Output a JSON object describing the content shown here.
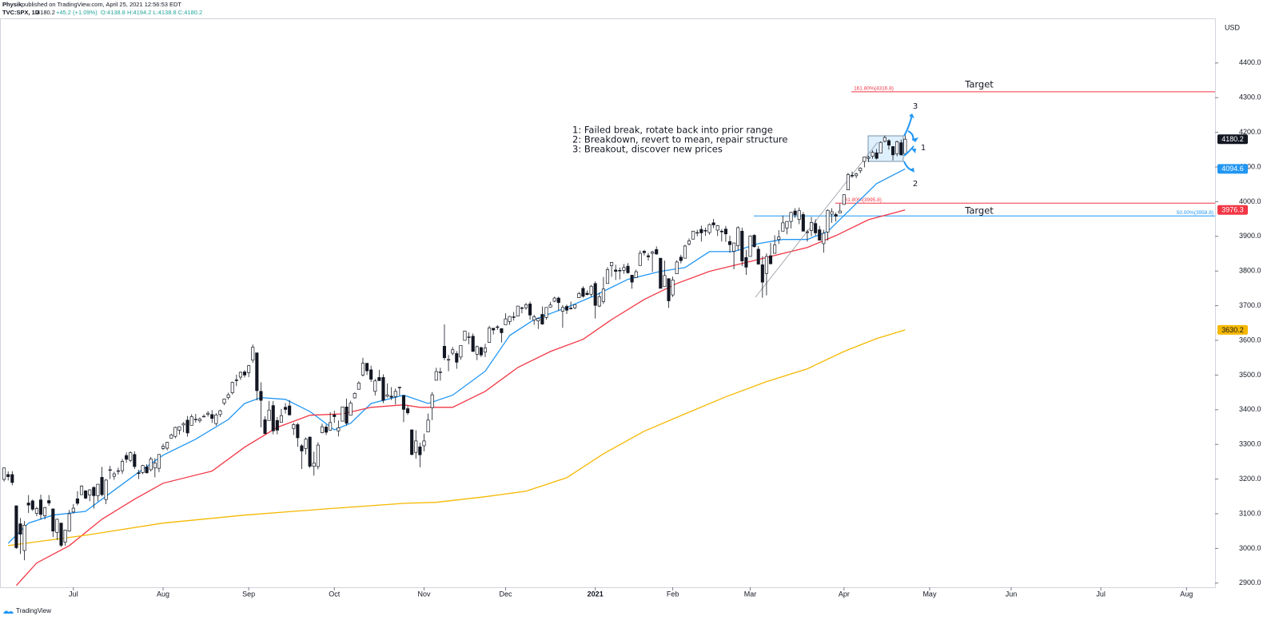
{
  "header": {
    "author": "Physik",
    "published": "published on TradingView.com, April 25, 2021 12:56:53 EDT",
    "symbol": "TVC:SPX, 1D",
    "last": "4180.2",
    "change": "+45.2 (+1.09%)",
    "ohlc": "O:4138.8 H:4194.2 L:4138.8 C:4180.2"
  },
  "footer": {
    "brand": "TradingView"
  },
  "chart_data": {
    "type": "candlestick",
    "currency": "USD",
    "colors": {
      "up": "#ffffff",
      "down": "#131722",
      "outline": "#131722"
    },
    "ylim": [
      2888,
      4524
    ],
    "yticks": [
      {
        "value": 2900,
        "label": "2900.0"
      },
      {
        "value": 3000,
        "label": "3000.0"
      },
      {
        "value": 3100,
        "label": "3100.0"
      },
      {
        "value": 3200,
        "label": "3200.0"
      },
      {
        "value": 3300,
        "label": "3300.0"
      },
      {
        "value": 3400,
        "label": "3400.0"
      },
      {
        "value": 3500,
        "label": "3500.0"
      },
      {
        "value": 3600,
        "label": "3600.0"
      },
      {
        "value": 3700,
        "label": "3700.0"
      },
      {
        "value": 3800,
        "label": "3800.0"
      },
      {
        "value": 3900,
        "label": "3900.0"
      },
      {
        "value": 4000,
        "label": "4000.0"
      },
      {
        "value": 4100,
        "label": "4100.0"
      },
      {
        "value": 4200,
        "label": "4200.0"
      },
      {
        "value": 4300,
        "label": "4300.0"
      },
      {
        "value": 4400,
        "label": "4400.0"
      }
    ],
    "xlim": [
      -1,
      297
    ],
    "xticks": [
      {
        "value": 17,
        "label": "Jul"
      },
      {
        "value": 39,
        "label": "Aug"
      },
      {
        "value": 60,
        "label": "Sep"
      },
      {
        "value": 81,
        "label": "Oct"
      },
      {
        "value": 103,
        "label": "Nov"
      },
      {
        "value": 123,
        "label": "Dec"
      },
      {
        "value": 145,
        "label": "2021"
      },
      {
        "value": 164,
        "label": "Feb"
      },
      {
        "value": 183,
        "label": "Mar"
      },
      {
        "value": 206,
        "label": "Apr"
      },
      {
        "value": 227,
        "label": "May"
      },
      {
        "value": 247,
        "label": "Jun"
      },
      {
        "value": 269,
        "label": "Jul"
      },
      {
        "value": 290,
        "label": "Aug"
      }
    ],
    "open": [
      3199,
      3213,
      3213,
      3123,
      3071,
      2994,
      3131,
      3137,
      3101,
      3140,
      3094,
      3138,
      3114,
      3046,
      3073,
      3018,
      3050,
      3105,
      3143,
      3155,
      3166,
      3154,
      3176,
      3152,
      3205,
      3141,
      3225,
      3208,
      3224,
      3224,
      3268,
      3254,
      3271,
      3218,
      3219,
      3235,
      3227,
      3232,
      3231,
      3288,
      3289,
      3318,
      3323,
      3341,
      3356,
      3370,
      3355,
      3372,
      3368,
      3380,
      3387,
      3386,
      3360,
      3386,
      3419,
      3435,
      3449,
      3486,
      3494,
      3509,
      3507,
      3543,
      3564,
      3453,
      3371,
      3369,
      3412,
      3369,
      3364,
      3407,
      3411,
      3346,
      3357,
      3296,
      3288,
      3321,
      3237,
      3236,
      3334,
      3350,
      3341,
      3385,
      3339,
      3367,
      3408,
      3384,
      3434,
      3459,
      3500,
      3534,
      3515,
      3453,
      3493,
      3493,
      3439,
      3439,
      3438,
      3464,
      3441,
      3403,
      3342,
      3277,
      3293,
      3296,
      3336,
      3406,
      3485,
      3508,
      3583,
      3543,
      3563,
      3562,
      3552,
      3600,
      3610,
      3612,
      3560,
      3579,
      3566,
      3594,
      3635,
      3639,
      3634,
      3645,
      3654,
      3668,
      3670,
      3694,
      3694,
      3705,
      3659,
      3656,
      3675,
      3666,
      3696,
      3713,
      3722,
      3684,
      3698,
      3693,
      3694,
      3723,
      3750,
      3736,
      3733,
      3764,
      3699,
      3712,
      3764,
      3815,
      3803,
      3802,
      3802,
      3814,
      3788,
      3781,
      3816,
      3857,
      3844,
      3851,
      3862,
      3837,
      3755,
      3778,
      3731,
      3792,
      3840,
      3837,
      3878,
      3892,
      3910,
      3920,
      3917,
      3911,
      3939,
      3918,
      3915,
      3921,
      3885,
      3857,
      3873,
      3915,
      3839,
      3842,
      3903,
      3863,
      3818,
      3793,
      3844,
      3851,
      3891,
      3915,
      3924,
      3943,
      3973,
      3949,
      3963,
      3913,
      3917,
      3937,
      3919,
      3879,
      3912,
      3964,
      3963,
      3967,
      3992,
      4034,
      4076,
      4075,
      4089,
      4116,
      4125,
      4131,
      4141,
      4140,
      4174,
      4176,
      4159,
      4138,
      4170,
      4138.8
    ],
    "high": [
      3233,
      3222,
      3223,
      3123,
      3088,
      3079,
      3154,
      3141,
      3120,
      3155,
      3120,
      3154,
      3115,
      3086,
      3074,
      3054,
      3111,
      3128,
      3165,
      3182,
      3168,
      3171,
      3179,
      3186,
      3235,
      3200,
      3238,
      3221,
      3233,
      3258,
      3277,
      3280,
      3280,
      3227,
      3241,
      3243,
      3264,
      3260,
      3272,
      3302,
      3307,
      3331,
      3351,
      3352,
      3364,
      3382,
      3387,
      3388,
      3378,
      3387,
      3396,
      3399,
      3390,
      3400,
      3432,
      3449,
      3481,
      3501,
      3510,
      3514,
      3529,
      3588,
      3564,
      3479,
      3381,
      3425,
      3425,
      3379,
      3402,
      3419,
      3428,
      3362,
      3362,
      3301,
      3320,
      3323,
      3279,
      3306,
      3360,
      3357,
      3393,
      3397,
      3369,
      3409,
      3432,
      3426,
      3450,
      3482,
      3550,
      3534,
      3527,
      3489,
      3515,
      3502,
      3476,
      3465,
      3461,
      3466,
      3441,
      3411,
      3342,
      3341,
      3305,
      3331,
      3389,
      3451,
      3521,
      3521,
      3646,
      3558,
      3581,
      3569,
      3585,
      3628,
      3623,
      3620,
      3585,
      3582,
      3590,
      3642,
      3635,
      3644,
      3634,
      3678,
      3670,
      3682,
      3699,
      3697,
      3708,
      3712,
      3674,
      3665,
      3698,
      3695,
      3711,
      3726,
      3726,
      3702,
      3703,
      3712,
      3703,
      3740,
      3756,
      3744,
      3760,
      3770,
      3738,
      3783,
      3811,
      3826,
      3818,
      3810,
      3820,
      3823,
      3788,
      3804,
      3859,
      3861,
      3852,
      3859,
      3871,
      3837,
      3830,
      3779,
      3784,
      3831,
      3847,
      3876,
      3894,
      3916,
      3919,
      3931,
      3925,
      3937,
      3950,
      3933,
      3921,
      3930,
      3902,
      3881,
      3929,
      3925,
      3861,
      3903,
      3906,
      3872,
      3843,
      3851,
      3881,
      3903,
      3918,
      3960,
      3944,
      3971,
      3981,
      3983,
      3970,
      3919,
      3956,
      3949,
      3930,
      3919,
      3978,
      3981,
      3969,
      3994,
      4021,
      4083,
      4087,
      4083,
      4099,
      4129,
      4132,
      4148,
      4152,
      4174,
      4191,
      4180,
      4160,
      4176,
      4179,
      4194.2
    ],
    "low": [
      3193,
      3196,
      3182,
      2999,
      2984,
      2966,
      3102,
      3108,
      3093,
      3083,
      3084,
      3123,
      3033,
      3024,
      3004,
      3008,
      3048,
      3101,
      3124,
      3155,
      3142,
      3136,
      3115,
      3136,
      3150,
      3128,
      3200,
      3198,
      3213,
      3215,
      3247,
      3249,
      3229,
      3200,
      3214,
      3216,
      3222,
      3205,
      3220,
      3284,
      3283,
      3318,
      3318,
      3328,
      3335,
      3322,
      3355,
      3363,
      3362,
      3379,
      3380,
      3362,
      3354,
      3379,
      3413,
      3429,
      3444,
      3468,
      3486,
      3493,
      3494,
      3535,
      3427,
      3349,
      3330,
      3369,
      3329,
      3329,
      3364,
      3389,
      3384,
      3327,
      3293,
      3229,
      3271,
      3232,
      3210,
      3228,
      3332,
      3327,
      3340,
      3362,
      3323,
      3367,
      3354,
      3384,
      3432,
      3458,
      3496,
      3500,
      3480,
      3441,
      3483,
      3419,
      3435,
      3428,
      3415,
      3441,
      3364,
      3385,
      3268,
      3259,
      3234,
      3280,
      3336,
      3370,
      3485,
      3484,
      3543,
      3511,
      3557,
      3518,
      3544,
      3600,
      3589,
      3567,
      3543,
      3552,
      3552,
      3594,
      3617,
      3630,
      3594,
      3645,
      3645,
      3657,
      3670,
      3678,
      3688,
      3660,
      3645,
      3633,
      3645,
      3660,
      3695,
      3710,
      3685,
      3636,
      3676,
      3689,
      3690,
      3723,
      3723,
      3730,
      3726,
      3663,
      3696,
      3705,
      3764,
      3783,
      3774,
      3776,
      3792,
      3792,
      3749,
      3780,
      3816,
      3845,
      3830,
      3797,
      3847,
      3750,
      3755,
      3694,
      3725,
      3792,
      3822,
      3837,
      3874,
      3892,
      3900,
      3885,
      3902,
      3905,
      3924,
      3901,
      3885,
      3884,
      3853,
      3805,
      3859,
      3814,
      3789,
      3842,
      3868,
      3818,
      3723,
      3730,
      3819,
      3851,
      3878,
      3915,
      3906,
      3923,
      3953,
      3935,
      3914,
      3885,
      3900,
      3902,
      3888,
      3853,
      3888,
      3939,
      3943,
      3967,
      3992,
      4034,
      4069,
      4068,
      4082,
      4099,
      4114,
      4124,
      4122,
      4140,
      4171,
      4150,
      4119,
      4131,
      4133,
      4138.8
    ],
    "close": [
      3232,
      3207,
      3190,
      3002,
      3041,
      3067,
      3125,
      3113,
      3115,
      3098,
      3118,
      3131,
      3050,
      3084,
      3009,
      3053,
      3100,
      3116,
      3130,
      3180,
      3145,
      3169,
      3152,
      3185,
      3155,
      3197,
      3227,
      3215,
      3224,
      3251,
      3257,
      3276,
      3236,
      3216,
      3239,
      3218,
      3258,
      3246,
      3271,
      3295,
      3306,
      3327,
      3349,
      3351,
      3360,
      3333,
      3380,
      3373,
      3373,
      3381,
      3390,
      3375,
      3385,
      3397,
      3431,
      3443,
      3479,
      3484,
      3508,
      3500,
      3527,
      3580,
      3455,
      3427,
      3331,
      3399,
      3339,
      3341,
      3383,
      3401,
      3385,
      3357,
      3319,
      3281,
      3315,
      3237,
      3246,
      3298,
      3351,
      3335,
      3363,
      3380,
      3348,
      3408,
      3361,
      3419,
      3447,
      3477,
      3534,
      3512,
      3488,
      3483,
      3484,
      3427,
      3443,
      3436,
      3453,
      3465,
      3401,
      3391,
      3271,
      3310,
      3270,
      3310,
      3370,
      3443,
      3510,
      3509,
      3550,
      3545,
      3573,
      3537,
      3585,
      3627,
      3610,
      3568,
      3582,
      3558,
      3578,
      3636,
      3630,
      3638,
      3622,
      3662,
      3669,
      3667,
      3699,
      3692,
      3703,
      3673,
      3668,
      3663,
      3647,
      3695,
      3702,
      3722,
      3709,
      3695,
      3687,
      3691,
      3703,
      3735,
      3727,
      3732,
      3756,
      3701,
      3726,
      3748,
      3804,
      3825,
      3799,
      3801,
      3810,
      3795,
      3768,
      3798,
      3851,
      3853,
      3841,
      3855,
      3849,
      3750,
      3787,
      3714,
      3774,
      3826,
      3830,
      3872,
      3887,
      3915,
      3911,
      3910,
      3916,
      3934,
      3933,
      3931,
      3913,
      3907,
      3876,
      3881,
      3925,
      3829,
      3811,
      3901,
      3870,
      3820,
      3768,
      3842,
      3821,
      3875,
      3898,
      3939,
      3943,
      3969,
      3962,
      3974,
      3915,
      3913,
      3940,
      3910,
      3889,
      3909,
      3975,
      3971,
      3958,
      3973,
      4020,
      4078,
      4074,
      4080,
      4097,
      4129,
      4128,
      4142,
      4125,
      4171,
      4185,
      4163,
      4135,
      4173,
      4135,
      4180.2
    ],
    "ma": [
      {
        "color": "#2196f3",
        "x": [
          1,
          6,
          12,
          20,
          24,
          32,
          39,
          47,
          55,
          59,
          63,
          69,
          75,
          81,
          85,
          90,
          98,
          104,
          110,
          118,
          124,
          130,
          138,
          145,
          153,
          161,
          167,
          173,
          179,
          185,
          191,
          197,
          202,
          208,
          214,
          221
        ],
        "values": [
          3015,
          3073,
          3096,
          3107,
          3142,
          3211,
          3269,
          3315,
          3372,
          3418,
          3435,
          3430,
          3395,
          3342,
          3361,
          3418,
          3442,
          3418,
          3442,
          3511,
          3614,
          3660,
          3695,
          3730,
          3776,
          3799,
          3810,
          3856,
          3856,
          3879,
          3891,
          3891,
          3914,
          3983,
          4052,
          4094.6
        ]
      },
      {
        "color": "#f23645",
        "x": [
          3,
          8,
          16,
          24,
          32,
          39,
          51,
          59,
          67,
          75,
          83,
          90,
          98,
          102,
          110,
          118,
          126,
          134,
          142,
          149,
          157,
          165,
          173,
          181,
          189,
          197,
          204,
          212,
          221
        ],
        "values": [
          2893,
          2958,
          3008,
          3084,
          3142,
          3188,
          3223,
          3292,
          3349,
          3384,
          3388,
          3407,
          3414,
          3407,
          3407,
          3453,
          3522,
          3568,
          3603,
          3660,
          3718,
          3764,
          3799,
          3822,
          3845,
          3868,
          3902,
          3948,
          3976.3
        ]
      },
      {
        "color": "#f5b800",
        "x": [
          1,
          20,
          39,
          59,
          79,
          98,
          106,
          118,
          128,
          138,
          147,
          157,
          167,
          177,
          187,
          197,
          206,
          214,
          221
        ],
        "values": [
          3008,
          3038,
          3073,
          3096,
          3114,
          3130,
          3133,
          3149,
          3165,
          3204,
          3273,
          3338,
          3388,
          3437,
          3481,
          3518,
          3568,
          3605,
          3630.2
        ]
      }
    ],
    "price_labels": [
      {
        "value": 4180.2,
        "color": "#131722",
        "text_color": "#ffffff"
      },
      {
        "value": 4094.6,
        "color": "#2196f3",
        "text_color": "#ffffff"
      },
      {
        "value": 3976.3,
        "color": "#f23645",
        "text_color": "#ffffff"
      },
      {
        "value": 3630.2,
        "color": "#f5b800",
        "text_color": "#131722"
      }
    ],
    "levels": [
      {
        "value": 4316.8,
        "label": "161.80%(4316.8)",
        "color": "#f23645"
      },
      {
        "value": 3995.8,
        "label": "161.80%(3995.8)",
        "color": "#f23645"
      },
      {
        "value": 3958.8,
        "label": "50.00%(3958.8)",
        "color": "#2196f3"
      }
    ],
    "notes": [
      "1: Failed break, rotate back into prior range",
      "2: Breakdown, revert to mean, repair structure",
      "3: Breakout, discover new prices"
    ],
    "targets": [
      "Target",
      "Target"
    ],
    "scenarios": [
      "1",
      "2",
      "3"
    ]
  }
}
